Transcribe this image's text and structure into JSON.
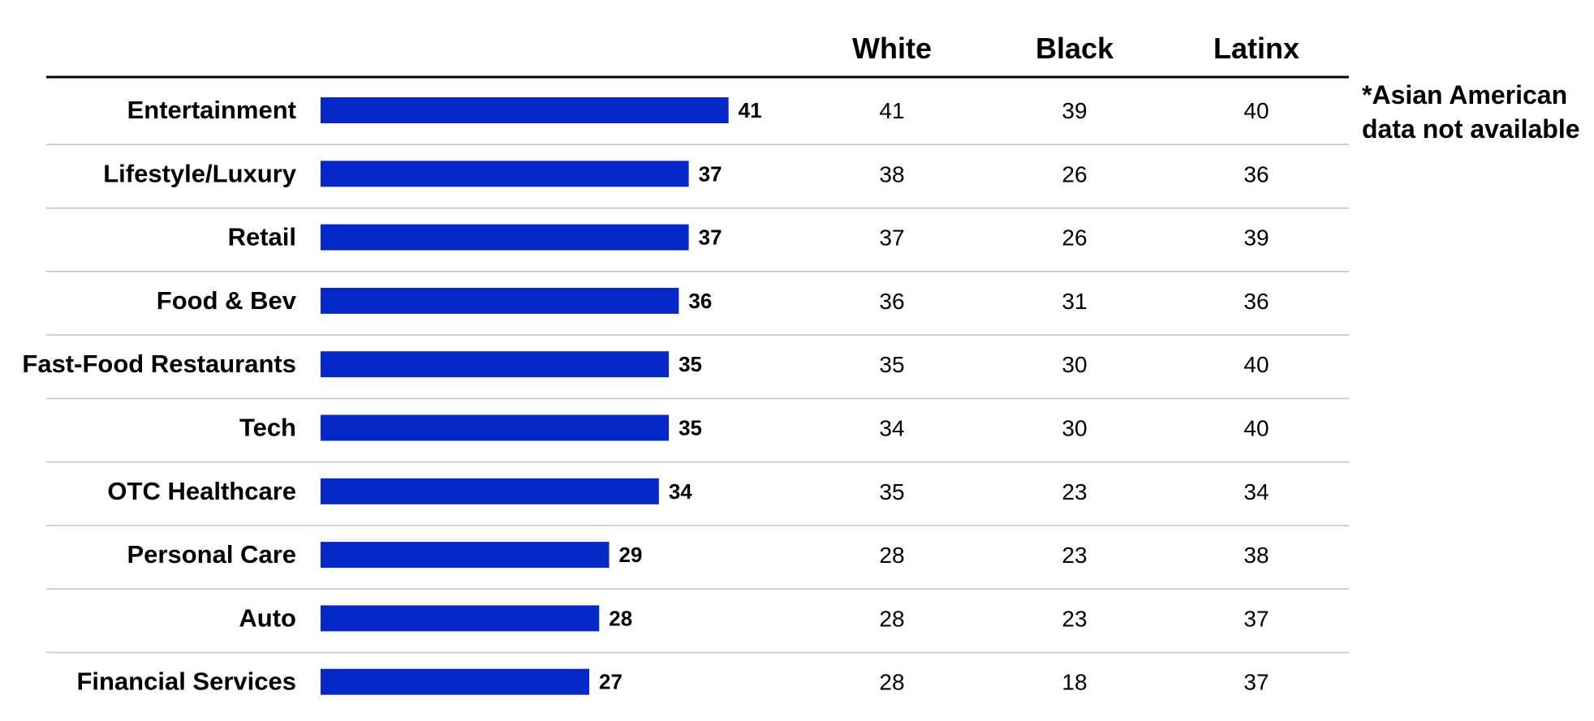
{
  "chart_data": {
    "type": "bar",
    "orientation": "horizontal",
    "categories": [
      "Entertainment",
      "Lifestyle/Luxury",
      "Retail",
      "Food & Bev",
      "Fast-Food Restaurants",
      "Tech",
      "OTC Healthcare",
      "Personal Care",
      "Auto",
      "Financial Services"
    ],
    "values": [
      41,
      37,
      37,
      36,
      35,
      35,
      34,
      29,
      28,
      27
    ],
    "bar_color": "#0528C8",
    "table": {
      "columns": [
        "White",
        "Black",
        "Latinx"
      ],
      "rows": [
        [
          41,
          39,
          40
        ],
        [
          38,
          26,
          36
        ],
        [
          37,
          26,
          39
        ],
        [
          36,
          31,
          36
        ],
        [
          35,
          30,
          40
        ],
        [
          34,
          30,
          40
        ],
        [
          35,
          23,
          34
        ],
        [
          28,
          23,
          38
        ],
        [
          28,
          23,
          37
        ],
        [
          28,
          18,
          37
        ]
      ]
    },
    "note": [
      "*Asian American",
      "data not available"
    ]
  }
}
